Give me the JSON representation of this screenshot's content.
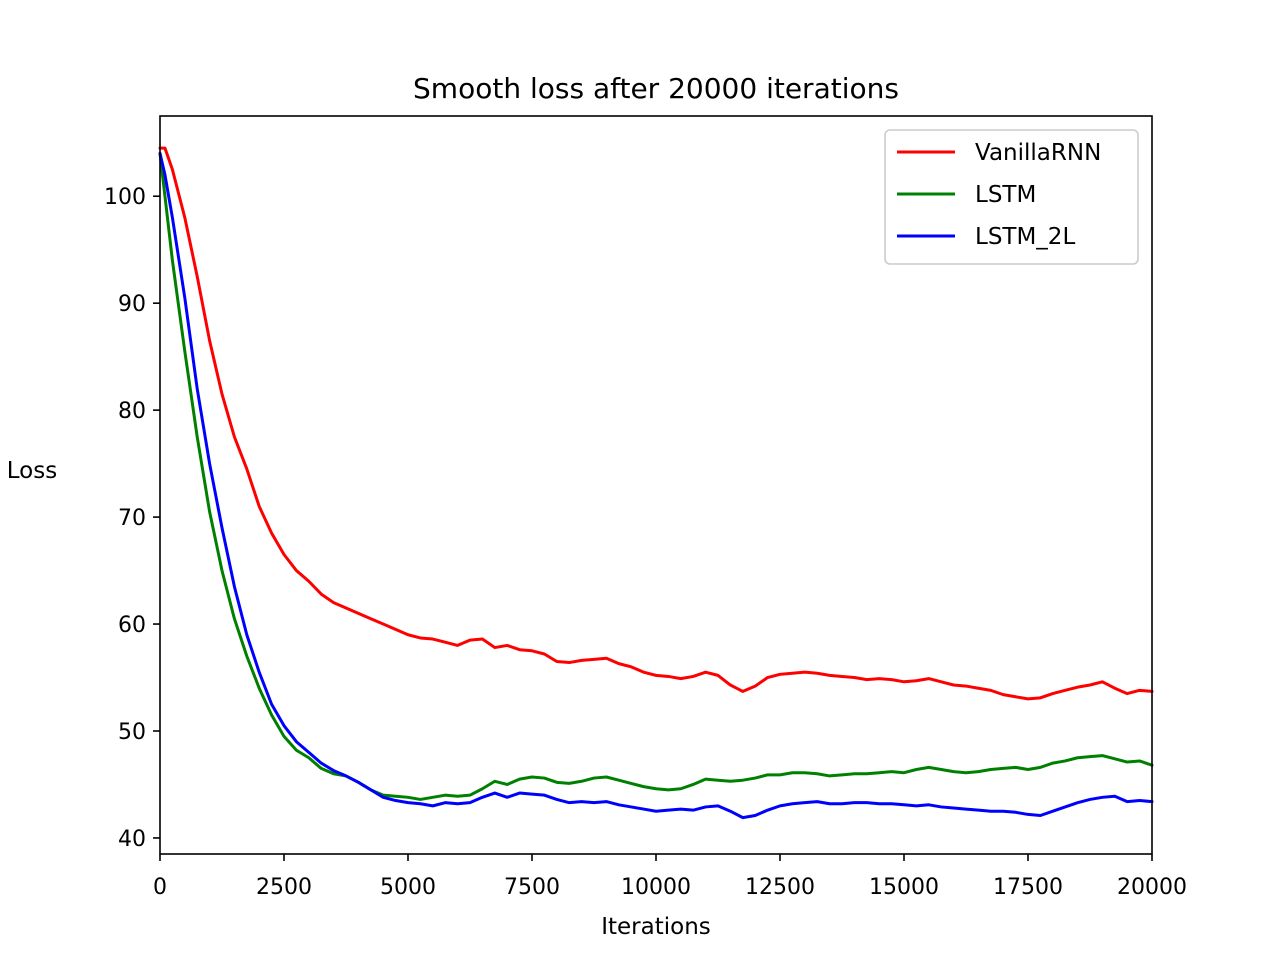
{
  "chart_data": {
    "type": "line",
    "title": "Smooth loss after 20000 iterations",
    "xlabel": "Iterations",
    "ylabel": "Loss",
    "xlim": [
      0,
      20000
    ],
    "ylim": [
      38.5,
      107.5
    ],
    "xticks": [
      0,
      2500,
      5000,
      7500,
      10000,
      12500,
      15000,
      17500,
      20000
    ],
    "yticks": [
      40,
      50,
      60,
      70,
      80,
      90,
      100
    ],
    "grid": false,
    "legend_position": "top-right",
    "series": [
      {
        "name": "VanillaRNN",
        "color": "#ff0000",
        "x": [
          0,
          100,
          250,
          500,
          750,
          1000,
          1250,
          1500,
          1750,
          2000,
          2250,
          2500,
          2750,
          3000,
          3250,
          3500,
          3750,
          4000,
          4250,
          4500,
          4750,
          5000,
          5250,
          5500,
          5750,
          6000,
          6250,
          6500,
          6750,
          7000,
          7250,
          7500,
          7750,
          8000,
          8250,
          8500,
          8750,
          9000,
          9250,
          9500,
          9750,
          10000,
          10250,
          10500,
          10750,
          11000,
          11250,
          11500,
          11750,
          12000,
          12250,
          12500,
          12750,
          13000,
          13250,
          13500,
          13750,
          14000,
          14250,
          14500,
          14750,
          15000,
          15250,
          15500,
          15750,
          16000,
          16250,
          16500,
          16750,
          17000,
          17250,
          17500,
          17750,
          18000,
          18250,
          18500,
          18750,
          19000,
          19250,
          19500,
          19750,
          20000
        ],
        "values": [
          104.5,
          104.5,
          102.5,
          98,
          92.5,
          86.5,
          81.5,
          77.5,
          74.5,
          71,
          68.5,
          66.5,
          65,
          64,
          62.8,
          62,
          61.5,
          61,
          60.5,
          60,
          59.5,
          59,
          58.7,
          58.6,
          58.3,
          58,
          58.5,
          58.6,
          57.8,
          58,
          57.6,
          57.5,
          57.2,
          56.5,
          56.4,
          56.6,
          56.7,
          56.8,
          56.3,
          56,
          55.5,
          55.2,
          55.1,
          54.9,
          55.1,
          55.5,
          55.2,
          54.3,
          53.7,
          54.2,
          55,
          55.3,
          55.4,
          55.5,
          55.4,
          55.2,
          55.1,
          55,
          54.8,
          54.9,
          54.8,
          54.6,
          54.7,
          54.9,
          54.6,
          54.3,
          54.2,
          54,
          53.8,
          53.4,
          53.2,
          53,
          53.1,
          53.5,
          53.8,
          54.1,
          54.3,
          54.6,
          54,
          53.5,
          53.8,
          53.7
        ]
      },
      {
        "name": "LSTM",
        "color": "#008000",
        "x": [
          0,
          100,
          250,
          500,
          750,
          1000,
          1250,
          1500,
          1750,
          2000,
          2250,
          2500,
          2750,
          3000,
          3250,
          3500,
          3750,
          4000,
          4250,
          4500,
          4750,
          5000,
          5250,
          5500,
          5750,
          6000,
          6250,
          6500,
          6750,
          7000,
          7250,
          7500,
          7750,
          8000,
          8250,
          8500,
          8750,
          9000,
          9250,
          9500,
          9750,
          10000,
          10250,
          10500,
          10750,
          11000,
          11250,
          11500,
          11750,
          12000,
          12250,
          12500,
          12750,
          13000,
          13250,
          13500,
          13750,
          14000,
          14250,
          14500,
          14750,
          15000,
          15250,
          15500,
          15750,
          16000,
          16250,
          16500,
          16750,
          17000,
          17250,
          17500,
          17750,
          18000,
          18250,
          18500,
          18750,
          19000,
          19250,
          19500,
          19750,
          20000
        ],
        "values": [
          104,
          100,
          94,
          85.5,
          77.5,
          70.5,
          65,
          60.5,
          57,
          54,
          51.5,
          49.5,
          48.2,
          47.5,
          46.5,
          46,
          45.8,
          45.2,
          44.5,
          44,
          43.9,
          43.8,
          43.6,
          43.8,
          44,
          43.9,
          44,
          44.6,
          45.3,
          45,
          45.5,
          45.7,
          45.6,
          45.2,
          45.1,
          45.3,
          45.6,
          45.7,
          45.4,
          45.1,
          44.8,
          44.6,
          44.5,
          44.6,
          45,
          45.5,
          45.4,
          45.3,
          45.4,
          45.6,
          45.9,
          45.9,
          46.1,
          46.1,
          46,
          45.8,
          45.9,
          46,
          46,
          46.1,
          46.2,
          46.1,
          46.4,
          46.6,
          46.4,
          46.2,
          46.1,
          46.2,
          46.4,
          46.5,
          46.6,
          46.4,
          46.6,
          47,
          47.2,
          47.5,
          47.6,
          47.7,
          47.4,
          47.1,
          47.2,
          46.8
        ]
      },
      {
        "name": "LSTM_2L",
        "color": "#0000ff",
        "x": [
          0,
          100,
          250,
          500,
          750,
          1000,
          1250,
          1500,
          1750,
          2000,
          2250,
          2500,
          2750,
          3000,
          3250,
          3500,
          3750,
          4000,
          4250,
          4500,
          4750,
          5000,
          5250,
          5500,
          5750,
          6000,
          6250,
          6500,
          6750,
          7000,
          7250,
          7500,
          7750,
          8000,
          8250,
          8500,
          8750,
          9000,
          9250,
          9500,
          9750,
          10000,
          10250,
          10500,
          10750,
          11000,
          11250,
          11500,
          11750,
          12000,
          12250,
          12500,
          12750,
          13000,
          13250,
          13500,
          13750,
          14000,
          14250,
          14500,
          14750,
          15000,
          15250,
          15500,
          15750,
          16000,
          16250,
          16500,
          16750,
          17000,
          17250,
          17500,
          17750,
          18000,
          18250,
          18500,
          18750,
          19000,
          19250,
          19500,
          19750,
          20000
        ],
        "values": [
          104,
          102,
          98,
          90.5,
          82,
          75,
          69,
          63.5,
          59,
          55.5,
          52.5,
          50.5,
          49,
          48,
          47,
          46.3,
          45.8,
          45.2,
          44.5,
          43.8,
          43.5,
          43.3,
          43.2,
          43,
          43.3,
          43.2,
          43.3,
          43.8,
          44.2,
          43.8,
          44.2,
          44.1,
          44,
          43.6,
          43.3,
          43.4,
          43.3,
          43.4,
          43.1,
          42.9,
          42.7,
          42.5,
          42.6,
          42.7,
          42.6,
          42.9,
          43,
          42.5,
          41.9,
          42.1,
          42.6,
          43,
          43.2,
          43.3,
          43.4,
          43.2,
          43.2,
          43.3,
          43.3,
          43.2,
          43.2,
          43.1,
          43,
          43.1,
          42.9,
          42.8,
          42.7,
          42.6,
          42.5,
          42.5,
          42.4,
          42.2,
          42.1,
          42.5,
          42.9,
          43.3,
          43.6,
          43.8,
          43.9,
          43.4,
          43.5,
          43.4
        ]
      }
    ]
  }
}
